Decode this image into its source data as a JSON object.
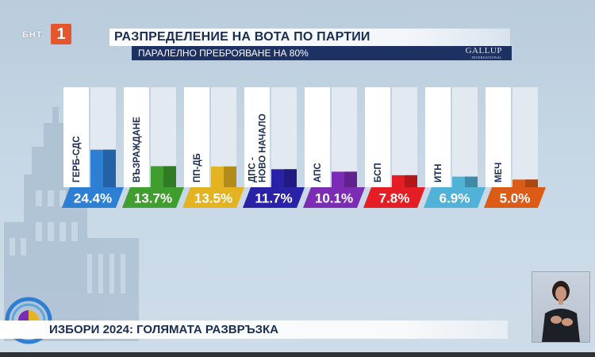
{
  "channel": {
    "name": "БНТ",
    "number": "1"
  },
  "header": {
    "title": "РАЗПРЕДЕЛЕНИЕ НА ВОТА ПО ПАРТИИ",
    "subtitle": "ПАРАЛЕЛНО ПРЕБРОЯВАНЕ НА 80%",
    "pollster": "GALLUP",
    "pollster_sub": "INTERNATIONAL"
  },
  "chart_data": {
    "type": "bar",
    "categories": [
      "ГЕРБ-СДС",
      "ВЪЗРАЖДАНЕ",
      "ПП-ДБ",
      "ДПС - НОВО НАЧАЛО",
      "АПС",
      "БСП",
      "ИТН",
      "МЕЧ"
    ],
    "values": [
      24.4,
      13.7,
      13.5,
      11.7,
      10.1,
      7.8,
      6.9,
      5.0
    ],
    "value_labels": [
      "24.4%",
      "13.7%",
      "13.5%",
      "11.7%",
      "10.1%",
      "7.8%",
      "6.9%",
      "5.0%"
    ],
    "colors": [
      "#2d7fd4",
      "#3f9e2e",
      "#e3b321",
      "#2a22a6",
      "#7c2bb5",
      "#e51d24",
      "#4fb2d6",
      "#db5c17"
    ],
    "ylim": [
      0,
      65
    ],
    "grid": false,
    "legend": "none"
  },
  "footer": {
    "program": "ИЗБОРИ 2024: ГОЛЯМАТА РАЗВРЪЗКА"
  },
  "colors": {
    "navy": "#1d3163",
    "title_text": "#1a2d52",
    "accent": "#e4572e"
  }
}
